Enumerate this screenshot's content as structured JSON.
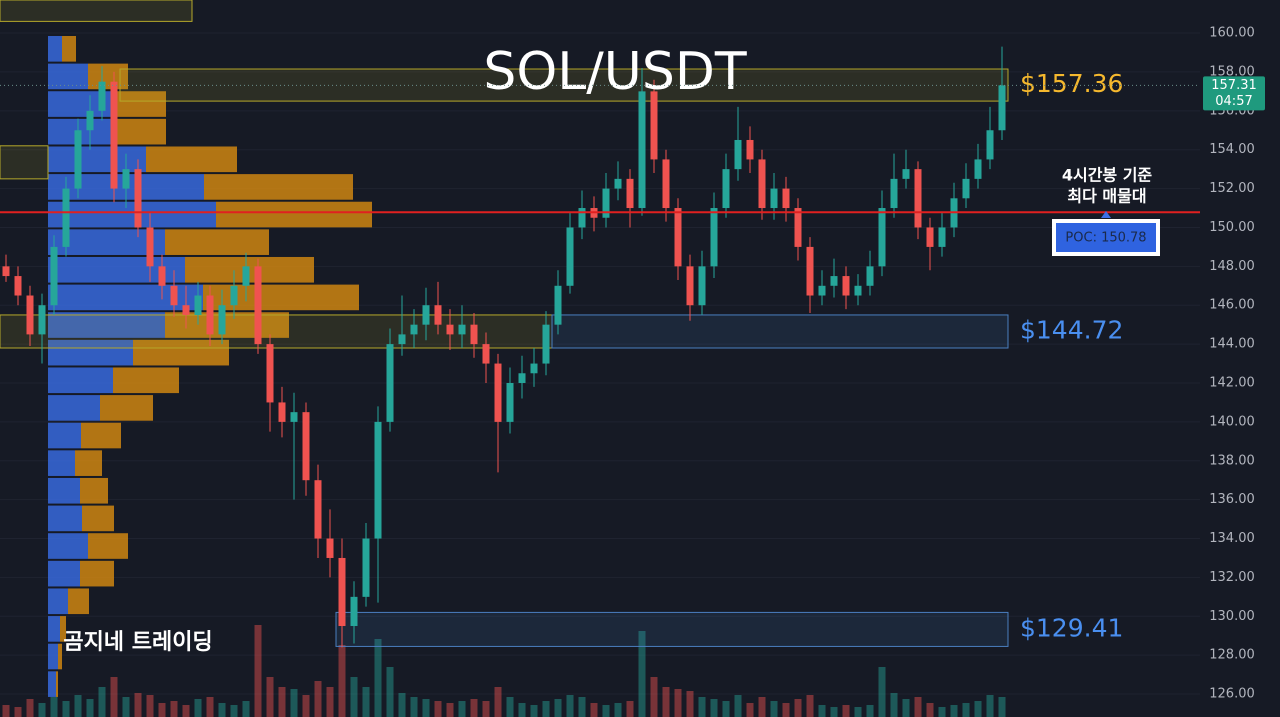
{
  "chart_data": {
    "type": "candlestick",
    "title": "SOL/USDT",
    "watermark": "곰지네 트레이딩",
    "ylim": [
      124.82,
      161.7
    ],
    "yticks": [
      {
        "value": 160,
        "label": "160.00"
      },
      {
        "value": 158,
        "label": "158.00"
      },
      {
        "value": 156,
        "label": "156.00"
      },
      {
        "value": 154,
        "label": "154.00"
      },
      {
        "value": 152,
        "label": "152.00"
      },
      {
        "value": 150,
        "label": "150.00"
      },
      {
        "value": 148,
        "label": "148.00"
      },
      {
        "value": 146,
        "label": "146.00"
      },
      {
        "value": 144,
        "label": "144.00"
      },
      {
        "value": 142,
        "label": "142.00"
      },
      {
        "value": 140,
        "label": "140.00"
      },
      {
        "value": 138,
        "label": "138.00"
      },
      {
        "value": 136,
        "label": "136.00"
      },
      {
        "value": 134,
        "label": "134.00"
      },
      {
        "value": 132,
        "label": "132.00"
      },
      {
        "value": 130,
        "label": "130.00"
      },
      {
        "value": 128,
        "label": "128.00"
      },
      {
        "value": 126,
        "label": "126.00"
      }
    ],
    "grid": true,
    "up_color": "#26a69a",
    "down_color": "#ef5350",
    "candles": [
      [
        148,
        148.6,
        147.2,
        147.5
      ],
      [
        147.5,
        148,
        146,
        146.5
      ],
      [
        146.5,
        147,
        143.9,
        144.5
      ],
      [
        144.5,
        146.6,
        143,
        146
      ],
      [
        146,
        149.6,
        145.5,
        149
      ],
      [
        149,
        152.6,
        148.5,
        152
      ],
      [
        152,
        155.6,
        151.5,
        155
      ],
      [
        155,
        156.8,
        154,
        156
      ],
      [
        156,
        158.3,
        155.5,
        157.5
      ],
      [
        157.5,
        158,
        151.3,
        152
      ],
      [
        152,
        153.8,
        151,
        153
      ],
      [
        153,
        153.5,
        149.5,
        150
      ],
      [
        150,
        150.8,
        147.2,
        148
      ],
      [
        148,
        148.6,
        146.3,
        147
      ],
      [
        147,
        147.8,
        145.4,
        146
      ],
      [
        146,
        147,
        144.8,
        145.5
      ],
      [
        145.5,
        147.2,
        145,
        146.5
      ],
      [
        146.5,
        147,
        143.9,
        144.5
      ],
      [
        144.5,
        146.8,
        144,
        146
      ],
      [
        146,
        147.8,
        145.3,
        147
      ],
      [
        147,
        148.7,
        146.2,
        148
      ],
      [
        148,
        148.4,
        143.5,
        144
      ],
      [
        144,
        144.5,
        139.5,
        141
      ],
      [
        141,
        141.8,
        139.2,
        140
      ],
      [
        140,
        141.5,
        136,
        140.5
      ],
      [
        140.5,
        141,
        136.2,
        137
      ],
      [
        137,
        137.8,
        133,
        134
      ],
      [
        134,
        135.5,
        132,
        133
      ],
      [
        133,
        134,
        128.4,
        129.5
      ],
      [
        129.5,
        131.8,
        128.6,
        131
      ],
      [
        131,
        134.8,
        130.5,
        134
      ],
      [
        134,
        140.8,
        130.7,
        140
      ],
      [
        140,
        144.8,
        139.5,
        144
      ],
      [
        144,
        146.5,
        143.4,
        144.5
      ],
      [
        144.5,
        145.8,
        143.8,
        145
      ],
      [
        145,
        146.9,
        144.2,
        146
      ],
      [
        146,
        147.2,
        144.5,
        145
      ],
      [
        145,
        145.8,
        143.7,
        144.5
      ],
      [
        144.5,
        146,
        143.8,
        145
      ],
      [
        145,
        145.6,
        143.3,
        144
      ],
      [
        144,
        144.6,
        142,
        143
      ],
      [
        143,
        143.5,
        137.4,
        140
      ],
      [
        140,
        142.8,
        139.4,
        142
      ],
      [
        142,
        143.4,
        141.2,
        142.5
      ],
      [
        142.5,
        143.8,
        141.8,
        143
      ],
      [
        143,
        145.7,
        142.4,
        145
      ],
      [
        145,
        147.8,
        144.5,
        147
      ],
      [
        147,
        150.8,
        146.6,
        150
      ],
      [
        150,
        151.9,
        149.4,
        151
      ],
      [
        151,
        151.6,
        149.8,
        150.5
      ],
      [
        150.5,
        152.8,
        150,
        152
      ],
      [
        152,
        153.4,
        151.4,
        152.5
      ],
      [
        152.5,
        153,
        150,
        151
      ],
      [
        151,
        158.2,
        150.6,
        157
      ],
      [
        157,
        157.6,
        152.8,
        153.5
      ],
      [
        153.5,
        154,
        150.3,
        151
      ],
      [
        151,
        151.5,
        147.3,
        148
      ],
      [
        148,
        148.6,
        145.2,
        146
      ],
      [
        146,
        148.8,
        145.5,
        148
      ],
      [
        148,
        151.8,
        147.4,
        151
      ],
      [
        151,
        153.8,
        150.5,
        153
      ],
      [
        153,
        156.2,
        152.4,
        154.5
      ],
      [
        154.5,
        155.2,
        152.8,
        153.5
      ],
      [
        153.5,
        154,
        150.4,
        151
      ],
      [
        151,
        152.8,
        150.4,
        152
      ],
      [
        152,
        152.6,
        150.3,
        151
      ],
      [
        151,
        151.5,
        148.3,
        149
      ],
      [
        149,
        149.5,
        145.6,
        146.5
      ],
      [
        146.5,
        147.8,
        146,
        147
      ],
      [
        147,
        148.4,
        146.4,
        147.5
      ],
      [
        147.5,
        148,
        145.8,
        146.5
      ],
      [
        146.5,
        147.6,
        146,
        147
      ],
      [
        147,
        148.8,
        146.5,
        148
      ],
      [
        148,
        151.9,
        147.5,
        151
      ],
      [
        151,
        153.8,
        150.5,
        152.5
      ],
      [
        152.5,
        154,
        152,
        153
      ],
      [
        153,
        153.4,
        149.4,
        150
      ],
      [
        150,
        150.5,
        147.8,
        149
      ],
      [
        149,
        150.8,
        148.5,
        150
      ],
      [
        150,
        152.3,
        149.5,
        151.5
      ],
      [
        151.5,
        153.3,
        151,
        152.5
      ],
      [
        152.5,
        154.3,
        152,
        153.5
      ],
      [
        153.5,
        156.2,
        153,
        155
      ],
      [
        155,
        159.3,
        154.5,
        157.31
      ]
    ],
    "volume": [
      12,
      10,
      18,
      14,
      20,
      16,
      22,
      18,
      30,
      40,
      20,
      24,
      22,
      14,
      16,
      12,
      18,
      20,
      14,
      12,
      16,
      92,
      40,
      30,
      28,
      22,
      36,
      30,
      72,
      40,
      30,
      78,
      50,
      24,
      20,
      18,
      16,
      14,
      16,
      18,
      16,
      30,
      20,
      14,
      12,
      16,
      18,
      22,
      20,
      14,
      12,
      14,
      16,
      86,
      40,
      30,
      28,
      26,
      20,
      18,
      16,
      22,
      14,
      20,
      16,
      14,
      18,
      22,
      12,
      10,
      12,
      10,
      12,
      50,
      24,
      18,
      20,
      14,
      10,
      12,
      14,
      16,
      22,
      20
    ],
    "profile": {
      "price_range": [
        125.8,
        159.9
      ],
      "buy_color": "#3a6ee8",
      "sell_color": "#d98c10",
      "buy": [
        14,
        40,
        67,
        64,
        98,
        156,
        168,
        117,
        137,
        155,
        117,
        85,
        65,
        52,
        33,
        27,
        32,
        34,
        40,
        32,
        20,
        12,
        10,
        8
      ],
      "sell": [
        14,
        40,
        51,
        54,
        91,
        149,
        156,
        104,
        129,
        156,
        124,
        96,
        66,
        53,
        40,
        27,
        28,
        32,
        40,
        34,
        21,
        6,
        4,
        2
      ]
    },
    "zones": [
      {
        "top": 161.7,
        "bottom": 160.6,
        "from": 0,
        "to": 16,
        "color": "#b5a82a"
      },
      {
        "top": 154.2,
        "bottom": 152.5,
        "from": 0,
        "to": 4,
        "color": "#b5a82a"
      },
      {
        "top": 158.15,
        "bottom": 156.5,
        "from": 10,
        "to": 84,
        "color": "#b5a82a",
        "label": "$157.36",
        "label_color": "#f5b82e"
      },
      {
        "top": 145.5,
        "bottom": 143.8,
        "from": 0,
        "to": 46,
        "color": "#b5a82a"
      },
      {
        "top": 145.5,
        "bottom": 143.8,
        "from": 46,
        "to": 84,
        "color": "#4a7fc0",
        "label": "$144.72",
        "label_color": "#4a8ff0"
      },
      {
        "top": 130.2,
        "bottom": 128.45,
        "from": 28,
        "to": 84,
        "color": "#4a7fc0",
        "label": "$129.41",
        "label_color": "#4a8ff0"
      }
    ],
    "poc": {
      "value": 150.78,
      "label": "POC: 150.78",
      "color": "#e02020"
    },
    "annotation": [
      "4시간봉 기준",
      "최다 매물대"
    ],
    "current_price": {
      "value": 157.31,
      "countdown": "04:57",
      "color": "#1f9a7e"
    }
  }
}
